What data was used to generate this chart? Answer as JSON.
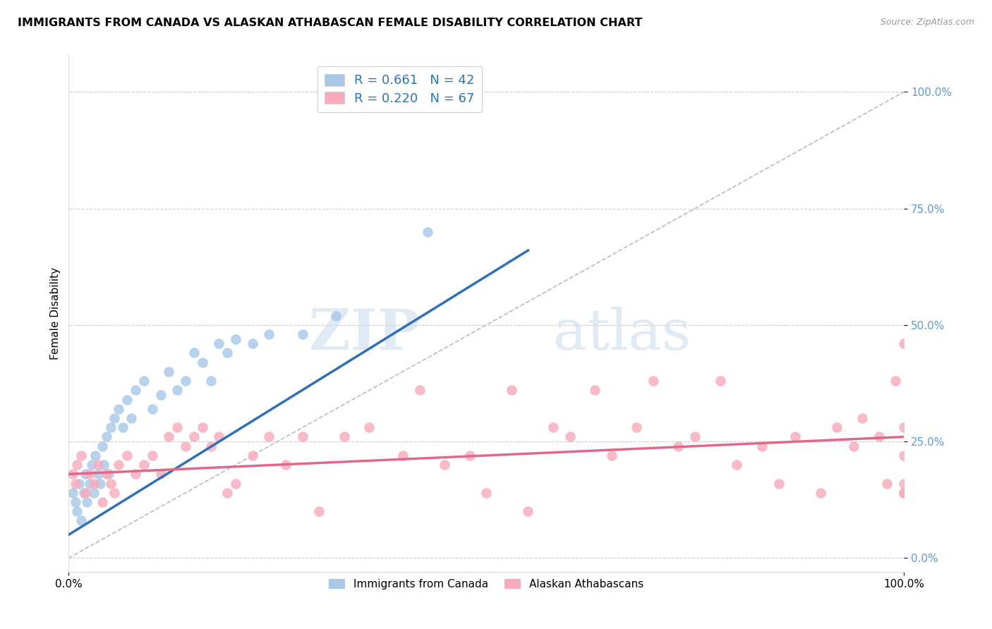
{
  "title": "IMMIGRANTS FROM CANADA VS ALASKAN ATHABASCAN FEMALE DISABILITY CORRELATION CHART",
  "source": "Source: ZipAtlas.com",
  "ylabel": "Female Disability",
  "ytick_labels": [
    "0.0%",
    "25.0%",
    "50.0%",
    "75.0%",
    "100.0%"
  ],
  "ytick_values": [
    0,
    25,
    50,
    75,
    100
  ],
  "xlim": [
    0,
    100
  ],
  "ylim": [
    -3,
    108
  ],
  "blue_R": 0.661,
  "blue_N": 42,
  "pink_R": 0.22,
  "pink_N": 67,
  "legend_label_blue": "Immigrants from Canada",
  "legend_label_pink": "Alaskan Athabascans",
  "blue_color": "#A8C8E8",
  "blue_line_color": "#3070B8",
  "pink_color": "#F8AABA",
  "pink_line_color": "#E06888",
  "diagonal_color": "#BBBBBB",
  "blue_x": [
    0.5,
    0.8,
    1.0,
    1.2,
    1.5,
    1.8,
    2.0,
    2.2,
    2.5,
    2.8,
    3.0,
    3.2,
    3.5,
    3.8,
    4.0,
    4.2,
    4.5,
    4.8,
    5.0,
    5.5,
    6.0,
    6.5,
    7.0,
    7.5,
    8.0,
    9.0,
    10.0,
    11.0,
    12.0,
    13.0,
    14.0,
    15.0,
    16.0,
    17.0,
    18.0,
    19.0,
    20.0,
    22.0,
    24.0,
    28.0,
    32.0,
    43.0
  ],
  "blue_y": [
    14.0,
    12.0,
    10.0,
    16.0,
    8.0,
    14.0,
    18.0,
    12.0,
    16.0,
    20.0,
    14.0,
    22.0,
    18.0,
    16.0,
    24.0,
    20.0,
    26.0,
    18.0,
    28.0,
    30.0,
    32.0,
    28.0,
    34.0,
    30.0,
    36.0,
    38.0,
    32.0,
    35.0,
    40.0,
    36.0,
    38.0,
    44.0,
    42.0,
    38.0,
    46.0,
    44.0,
    47.0,
    46.0,
    48.0,
    48.0,
    52.0,
    70.0
  ],
  "pink_x": [
    0.5,
    0.8,
    1.0,
    1.5,
    2.0,
    2.5,
    3.0,
    3.5,
    4.0,
    4.5,
    5.0,
    5.5,
    6.0,
    7.0,
    8.0,
    9.0,
    10.0,
    11.0,
    12.0,
    13.0,
    14.0,
    15.0,
    16.0,
    17.0,
    18.0,
    19.0,
    20.0,
    22.0,
    24.0,
    26.0,
    28.0,
    30.0,
    33.0,
    36.0,
    40.0,
    42.0,
    45.0,
    48.0,
    50.0,
    53.0,
    55.0,
    58.0,
    60.0,
    63.0,
    65.0,
    68.0,
    70.0,
    73.0,
    75.0,
    78.0,
    80.0,
    83.0,
    85.0,
    87.0,
    90.0,
    92.0,
    94.0,
    95.0,
    97.0,
    98.0,
    99.0,
    100.0,
    100.0,
    100.0,
    100.0,
    100.0,
    100.0
  ],
  "pink_y": [
    18.0,
    16.0,
    20.0,
    22.0,
    14.0,
    18.0,
    16.0,
    20.0,
    12.0,
    18.0,
    16.0,
    14.0,
    20.0,
    22.0,
    18.0,
    20.0,
    22.0,
    18.0,
    26.0,
    28.0,
    24.0,
    26.0,
    28.0,
    24.0,
    26.0,
    14.0,
    16.0,
    22.0,
    26.0,
    20.0,
    26.0,
    10.0,
    26.0,
    28.0,
    22.0,
    36.0,
    20.0,
    22.0,
    14.0,
    36.0,
    10.0,
    28.0,
    26.0,
    36.0,
    22.0,
    28.0,
    38.0,
    24.0,
    26.0,
    38.0,
    20.0,
    24.0,
    16.0,
    26.0,
    14.0,
    28.0,
    24.0,
    30.0,
    26.0,
    16.0,
    38.0,
    46.0,
    14.0,
    22.0,
    28.0,
    16.0,
    14.0
  ],
  "blue_line_x0": 0,
  "blue_line_y0": 5.0,
  "blue_line_x1": 55.0,
  "blue_line_y1": 66.0,
  "pink_line_x0": 0,
  "pink_line_y0": 18.0,
  "pink_line_x1": 100.0,
  "pink_line_y1": 26.0
}
